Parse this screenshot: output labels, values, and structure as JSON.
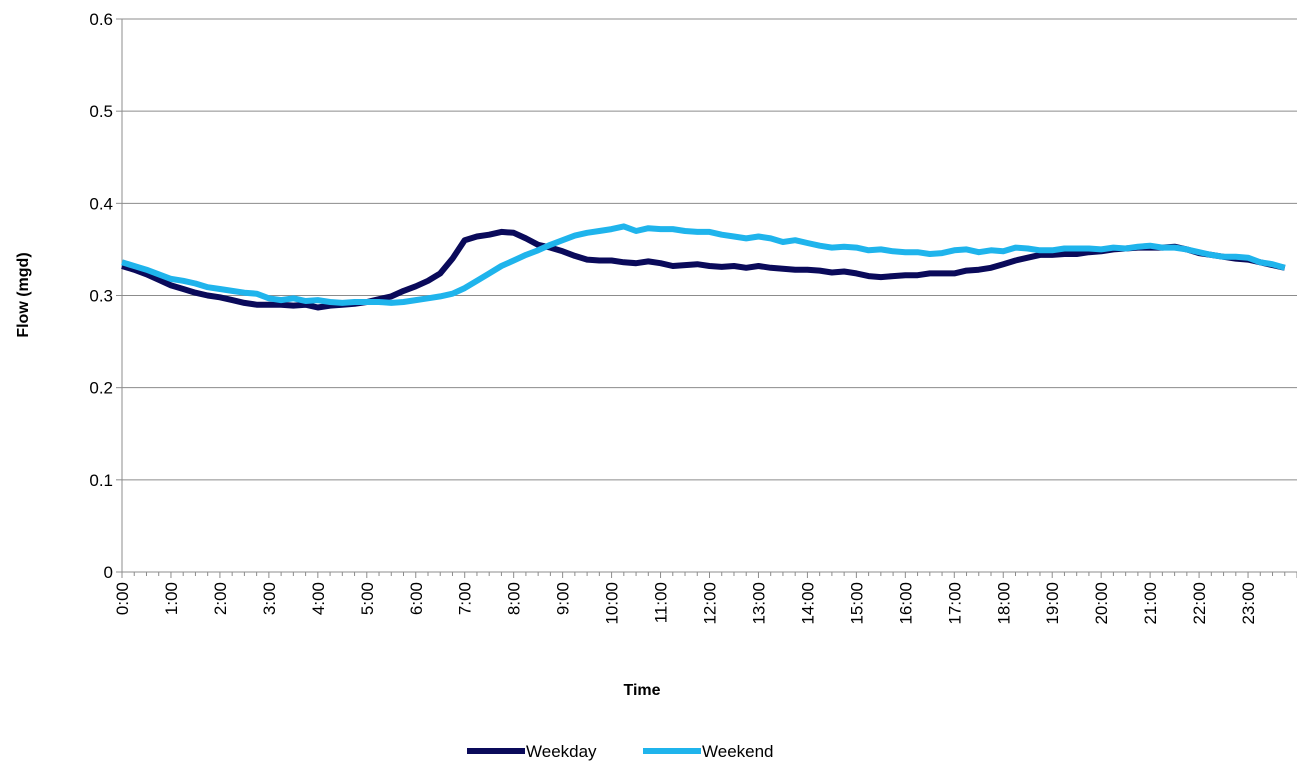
{
  "chart_data": {
    "type": "line",
    "title": "",
    "xlabel": "Time",
    "ylabel": "Flow (mgd)",
    "ylim": [
      0,
      0.6
    ],
    "yticks": [
      0,
      0.1,
      0.2,
      0.3,
      0.4,
      0.5,
      0.6
    ],
    "ytick_labels": [
      "0",
      "0.1",
      "0.2",
      "0.3",
      "0.4",
      "0.5",
      "0.6"
    ],
    "xlim_hours": [
      0,
      24
    ],
    "x_tick_labels": [
      "0:00",
      "1:00",
      "2:00",
      "3:00",
      "4:00",
      "5:00",
      "6:00",
      "7:00",
      "8:00",
      "9:00",
      "10:00",
      "11:00",
      "12:00",
      "13:00",
      "14:00",
      "15:00",
      "16:00",
      "17:00",
      "18:00",
      "19:00",
      "20:00",
      "21:00",
      "22:00",
      "23:00"
    ],
    "grid": "horizontal",
    "legend_position": "bottom",
    "series": [
      {
        "name": "Weekday",
        "color": "#0a0a5a",
        "points": [
          [
            0,
            0.332
          ],
          [
            0.25,
            0.328
          ],
          [
            0.5,
            0.323
          ],
          [
            0.75,
            0.317
          ],
          [
            1,
            0.311
          ],
          [
            1.25,
            0.307
          ],
          [
            1.5,
            0.303
          ],
          [
            1.75,
            0.3
          ],
          [
            2,
            0.298
          ],
          [
            2.25,
            0.295
          ],
          [
            2.5,
            0.292
          ],
          [
            2.75,
            0.29
          ],
          [
            3,
            0.29
          ],
          [
            3.25,
            0.29
          ],
          [
            3.5,
            0.289
          ],
          [
            3.75,
            0.29
          ],
          [
            4,
            0.287
          ],
          [
            4.25,
            0.289
          ],
          [
            4.5,
            0.29
          ],
          [
            4.75,
            0.291
          ],
          [
            5,
            0.293
          ],
          [
            5.25,
            0.296
          ],
          [
            5.5,
            0.299
          ],
          [
            5.75,
            0.305
          ],
          [
            6,
            0.31
          ],
          [
            6.25,
            0.316
          ],
          [
            6.5,
            0.324
          ],
          [
            6.75,
            0.34
          ],
          [
            7,
            0.36
          ],
          [
            7.25,
            0.364
          ],
          [
            7.5,
            0.366
          ],
          [
            7.75,
            0.369
          ],
          [
            8,
            0.368
          ],
          [
            8.25,
            0.362
          ],
          [
            8.5,
            0.355
          ],
          [
            8.75,
            0.352
          ],
          [
            9,
            0.348
          ],
          [
            9.25,
            0.343
          ],
          [
            9.5,
            0.339
          ],
          [
            9.75,
            0.338
          ],
          [
            10,
            0.338
          ],
          [
            10.25,
            0.336
          ],
          [
            10.5,
            0.335
          ],
          [
            10.75,
            0.337
          ],
          [
            11,
            0.335
          ],
          [
            11.25,
            0.332
          ],
          [
            11.5,
            0.333
          ],
          [
            11.75,
            0.334
          ],
          [
            12,
            0.332
          ],
          [
            12.25,
            0.331
          ],
          [
            12.5,
            0.332
          ],
          [
            12.75,
            0.33
          ],
          [
            13,
            0.332
          ],
          [
            13.25,
            0.33
          ],
          [
            13.5,
            0.329
          ],
          [
            13.75,
            0.328
          ],
          [
            14,
            0.328
          ],
          [
            14.25,
            0.327
          ],
          [
            14.5,
            0.325
          ],
          [
            14.75,
            0.326
          ],
          [
            15,
            0.324
          ],
          [
            15.25,
            0.321
          ],
          [
            15.5,
            0.32
          ],
          [
            15.75,
            0.321
          ],
          [
            16,
            0.322
          ],
          [
            16.25,
            0.322
          ],
          [
            16.5,
            0.324
          ],
          [
            16.75,
            0.324
          ],
          [
            17,
            0.324
          ],
          [
            17.25,
            0.327
          ],
          [
            17.5,
            0.328
          ],
          [
            17.75,
            0.33
          ],
          [
            18,
            0.334
          ],
          [
            18.25,
            0.338
          ],
          [
            18.5,
            0.341
          ],
          [
            18.75,
            0.344
          ],
          [
            19,
            0.344
          ],
          [
            19.25,
            0.345
          ],
          [
            19.5,
            0.345
          ],
          [
            19.75,
            0.347
          ],
          [
            20,
            0.348
          ],
          [
            20.25,
            0.35
          ],
          [
            20.5,
            0.351
          ],
          [
            20.75,
            0.352
          ],
          [
            21,
            0.352
          ],
          [
            21.25,
            0.352
          ],
          [
            21.5,
            0.353
          ],
          [
            21.75,
            0.35
          ],
          [
            22,
            0.346
          ],
          [
            22.25,
            0.344
          ],
          [
            22.5,
            0.342
          ],
          [
            22.75,
            0.34
          ],
          [
            23,
            0.339
          ],
          [
            23.25,
            0.336
          ],
          [
            23.5,
            0.333
          ],
          [
            23.75,
            0.33
          ]
        ]
      },
      {
        "name": "Weekend",
        "color": "#1fb4ec",
        "points": [
          [
            0,
            0.336
          ],
          [
            0.25,
            0.332
          ],
          [
            0.5,
            0.328
          ],
          [
            0.75,
            0.323
          ],
          [
            1,
            0.318
          ],
          [
            1.25,
            0.316
          ],
          [
            1.5,
            0.313
          ],
          [
            1.75,
            0.309
          ],
          [
            2,
            0.307
          ],
          [
            2.25,
            0.305
          ],
          [
            2.5,
            0.303
          ],
          [
            2.75,
            0.302
          ],
          [
            3,
            0.297
          ],
          [
            3.25,
            0.295
          ],
          [
            3.5,
            0.297
          ],
          [
            3.75,
            0.294
          ],
          [
            4,
            0.295
          ],
          [
            4.25,
            0.293
          ],
          [
            4.5,
            0.292
          ],
          [
            4.75,
            0.293
          ],
          [
            5,
            0.293
          ],
          [
            5.25,
            0.293
          ],
          [
            5.5,
            0.292
          ],
          [
            5.75,
            0.293
          ],
          [
            6,
            0.295
          ],
          [
            6.25,
            0.297
          ],
          [
            6.5,
            0.299
          ],
          [
            6.75,
            0.302
          ],
          [
            7,
            0.308
          ],
          [
            7.25,
            0.316
          ],
          [
            7.5,
            0.324
          ],
          [
            7.75,
            0.332
          ],
          [
            8,
            0.338
          ],
          [
            8.25,
            0.344
          ],
          [
            8.5,
            0.349
          ],
          [
            8.75,
            0.355
          ],
          [
            9,
            0.36
          ],
          [
            9.25,
            0.365
          ],
          [
            9.5,
            0.368
          ],
          [
            9.75,
            0.37
          ],
          [
            10,
            0.372
          ],
          [
            10.25,
            0.375
          ],
          [
            10.5,
            0.37
          ],
          [
            10.75,
            0.373
          ],
          [
            11,
            0.372
          ],
          [
            11.25,
            0.372
          ],
          [
            11.5,
            0.37
          ],
          [
            11.75,
            0.369
          ],
          [
            12,
            0.369
          ],
          [
            12.25,
            0.366
          ],
          [
            12.5,
            0.364
          ],
          [
            12.75,
            0.362
          ],
          [
            13,
            0.364
          ],
          [
            13.25,
            0.362
          ],
          [
            13.5,
            0.358
          ],
          [
            13.75,
            0.36
          ],
          [
            14,
            0.357
          ],
          [
            14.25,
            0.354
          ],
          [
            14.5,
            0.352
          ],
          [
            14.75,
            0.353
          ],
          [
            15,
            0.352
          ],
          [
            15.25,
            0.349
          ],
          [
            15.5,
            0.35
          ],
          [
            15.75,
            0.348
          ],
          [
            16,
            0.347
          ],
          [
            16.25,
            0.347
          ],
          [
            16.5,
            0.345
          ],
          [
            16.75,
            0.346
          ],
          [
            17,
            0.349
          ],
          [
            17.25,
            0.35
          ],
          [
            17.5,
            0.347
          ],
          [
            17.75,
            0.349
          ],
          [
            18,
            0.348
          ],
          [
            18.25,
            0.352
          ],
          [
            18.5,
            0.351
          ],
          [
            18.75,
            0.349
          ],
          [
            19,
            0.349
          ],
          [
            19.25,
            0.351
          ],
          [
            19.5,
            0.351
          ],
          [
            19.75,
            0.351
          ],
          [
            20,
            0.35
          ],
          [
            20.25,
            0.352
          ],
          [
            20.5,
            0.351
          ],
          [
            20.75,
            0.353
          ],
          [
            21,
            0.354
          ],
          [
            21.25,
            0.352
          ],
          [
            21.5,
            0.352
          ],
          [
            21.75,
            0.35
          ],
          [
            22,
            0.347
          ],
          [
            22.25,
            0.344
          ],
          [
            22.5,
            0.342
          ],
          [
            22.75,
            0.342
          ],
          [
            23,
            0.341
          ],
          [
            23.25,
            0.336
          ],
          [
            23.5,
            0.334
          ],
          [
            23.75,
            0.33
          ]
        ]
      }
    ]
  }
}
